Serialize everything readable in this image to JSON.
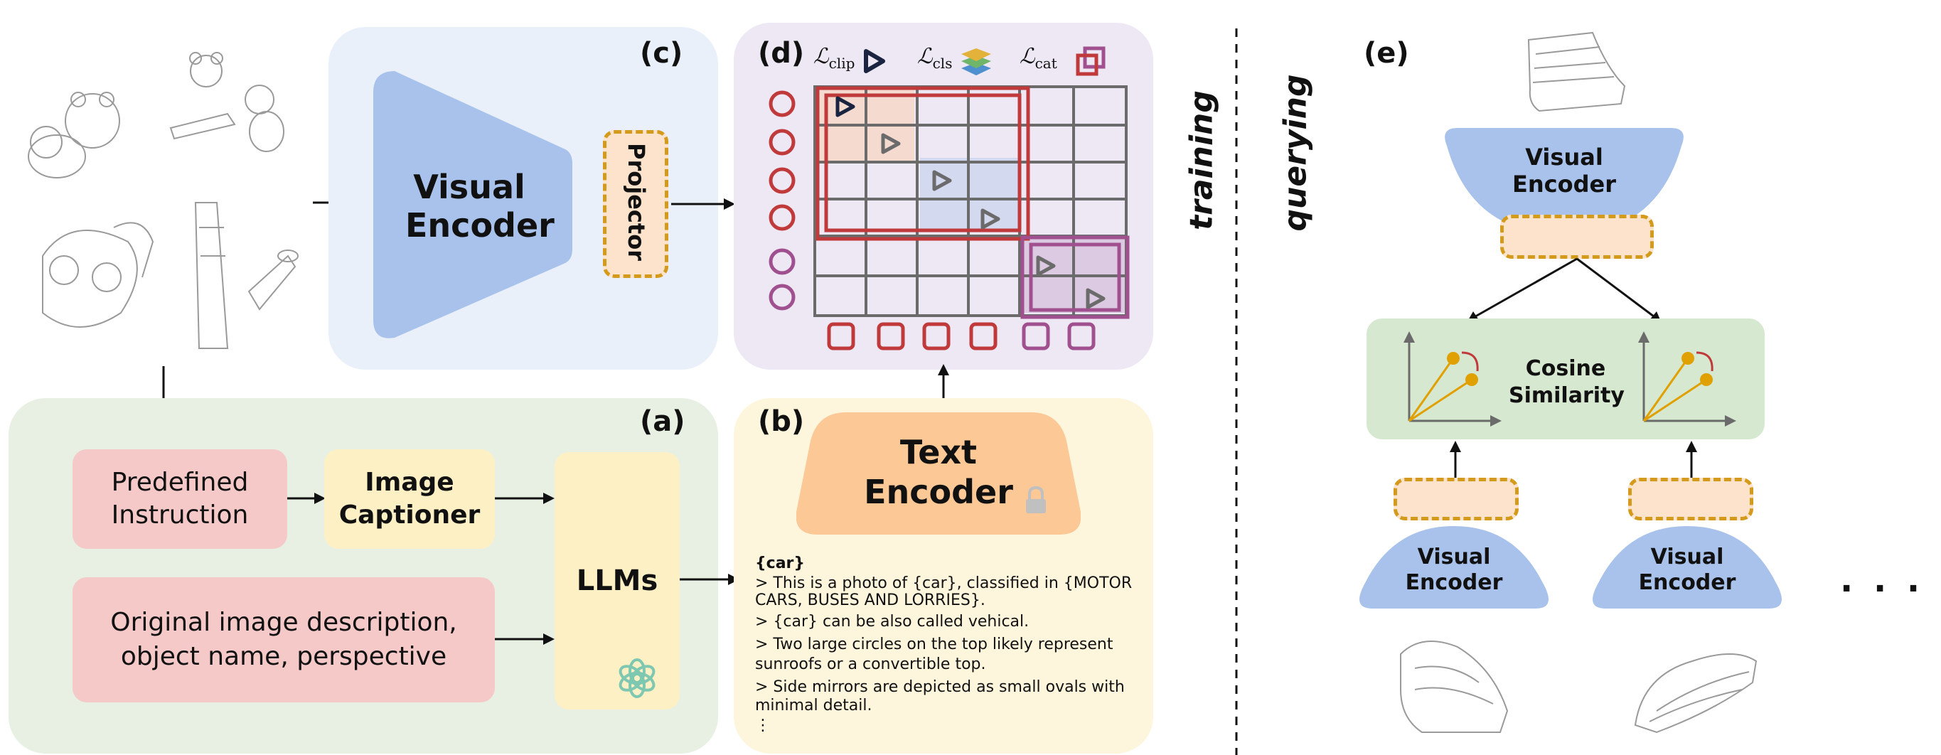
{
  "panels": {
    "a": "(a)",
    "b": "(b)",
    "c": "(c)",
    "d": "(d)",
    "e": "(e)"
  },
  "panel_a": {
    "predefined_instruction": "Predefined Instruction",
    "image_captioner": "Image Captioner",
    "original_description": "Original image description, object name, perspective",
    "llms": "LLMs"
  },
  "panel_b": {
    "text_encoder": "Text Encoder",
    "description_lines": [
      "{car}",
      "> This is a photo of {car}, classified in {MOTOR",
      "CARS, BUSES AND LORRIES}.",
      "> {car} can be also called vehical.",
      "> Two large circles on the top likely represent",
      "sunroofs or a convertible top.",
      "> Side mirrors are depicted as small ovals with",
      "minimal detail.",
      "⋮"
    ]
  },
  "panel_c": {
    "visual_encoder": "Visual Encoder",
    "projector": "Projector"
  },
  "panel_d": {
    "loss_clip": "clip",
    "loss_cls": "cls",
    "loss_cat": "cat",
    "loss_symbol": "ℒ"
  },
  "side_labels": {
    "training": "training",
    "querying": "querying"
  },
  "panel_e": {
    "visual_encoder_top": "Visual Encoder",
    "cosine_similarity": "Cosine Similarity",
    "visual_encoder_left": "Visual Encoder",
    "visual_encoder_right": "Visual Encoder",
    "ellipsis": "· · ·"
  },
  "colors": {
    "panel_a_bg": "#e8f0e4",
    "panel_b_bg": "#fdf5dc",
    "panel_c_bg": "#e9f0fa",
    "panel_d_bg": "#ede8f3",
    "encoder_blue": "#a8c2ec",
    "text_encoder_orange": "#fbc896",
    "pink_box": "#f6c9c9",
    "yellow_box": "#fdf0c4",
    "cosine_green": "#d6e8cf",
    "red_frame": "#c0393b",
    "purple_frame": "#a0508f",
    "dot_gold": "#e0a000"
  }
}
